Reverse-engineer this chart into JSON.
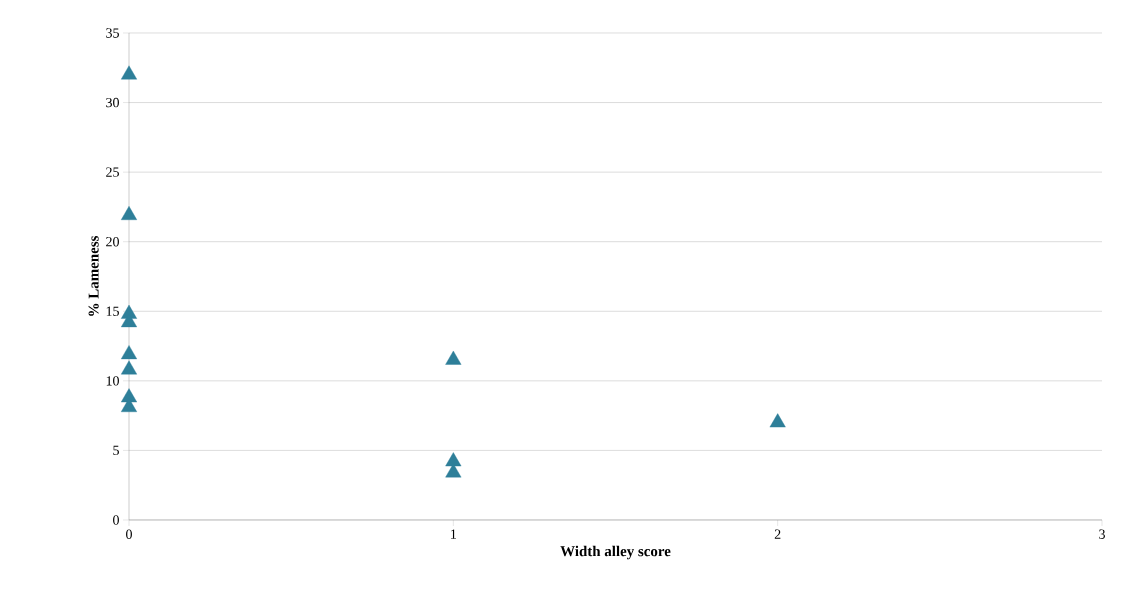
{
  "chart_data": {
    "type": "scatter",
    "xlabel": "Width alley score",
    "ylabel": "% Lameness",
    "x": [
      0,
      0,
      0,
      0,
      0,
      0,
      0,
      0,
      1,
      1,
      1,
      2
    ],
    "series": [
      {
        "color": "#2e7f99",
        "values": [
          32,
          21.9,
          14.8,
          14.2,
          11.9,
          10.8,
          8.8,
          8.1,
          11.5,
          4.2,
          3.4,
          7.0
        ]
      }
    ],
    "xlim": [
      0,
      3
    ],
    "ylim": [
      0,
      35
    ],
    "xticks": [
      0,
      1,
      2,
      3
    ],
    "yticks": [
      0,
      5,
      10,
      15,
      20,
      25,
      30,
      35
    ],
    "grid": "y",
    "marker": "triangle"
  }
}
